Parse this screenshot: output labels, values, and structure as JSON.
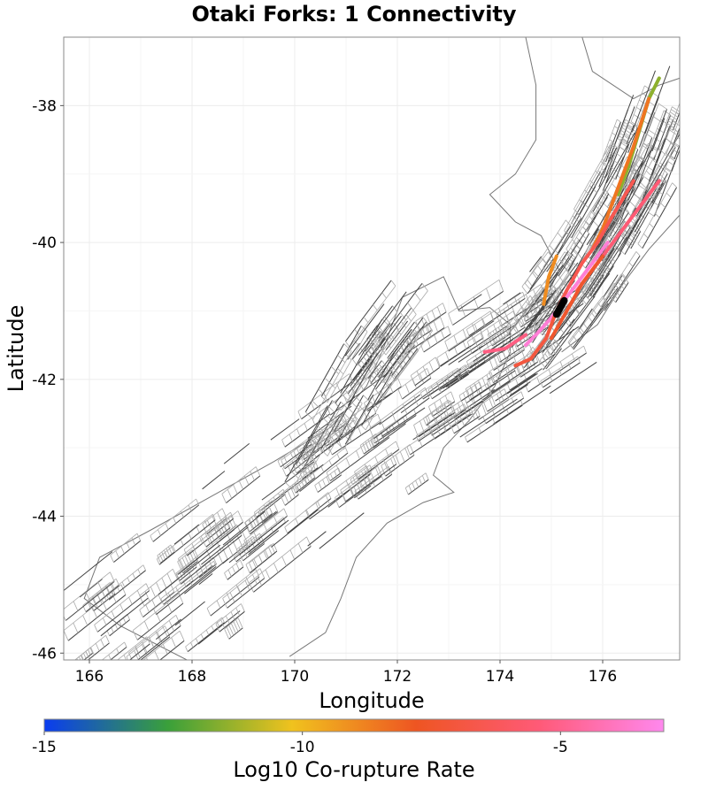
{
  "chart_data": {
    "type": "map",
    "title": "Otaki Forks: 1 Connectivity",
    "xlabel": "Longitude",
    "ylabel": "Latitude",
    "xlim": [
      165.5,
      177.5
    ],
    "ylim": [
      -46.1,
      -37.0
    ],
    "xticks": [
      166,
      168,
      170,
      172,
      174,
      176
    ],
    "yticks": [
      -38,
      -40,
      -42,
      -44,
      -46
    ],
    "grid": true,
    "colorbar": {
      "label": "Log10 Co-rupture Rate",
      "range": [
        -15,
        -3
      ],
      "ticks": [
        -15,
        -10,
        -5
      ],
      "colors": [
        "#0a3cf0",
        "#3aa03a",
        "#f0c21e",
        "#ee5522",
        "#ff5a78",
        "#ff88ee"
      ]
    },
    "source_fault_color": "#000000",
    "ruptures": [
      {
        "name": "north-green",
        "log10_rate": -11.5,
        "path": [
          [
            177.1,
            -37.6
          ],
          [
            176.9,
            -37.9
          ],
          [
            176.7,
            -38.4
          ],
          [
            176.5,
            -38.9
          ],
          [
            176.3,
            -39.3
          ]
        ]
      },
      {
        "name": "north-orange",
        "log10_rate": -8.5,
        "path": [
          [
            176.9,
            -37.9
          ],
          [
            176.6,
            -38.6
          ],
          [
            176.3,
            -39.2
          ],
          [
            176.0,
            -39.8
          ],
          [
            175.8,
            -40.1
          ]
        ]
      },
      {
        "name": "axial-orange-red",
        "log10_rate": -6.5,
        "path": [
          [
            176.6,
            -39.1
          ],
          [
            176.2,
            -39.6
          ],
          [
            175.9,
            -40.0
          ],
          [
            175.6,
            -40.3
          ],
          [
            175.3,
            -40.7
          ],
          [
            175.1,
            -41.0
          ]
        ]
      },
      {
        "name": "east-red",
        "log10_rate": -5.5,
        "path": [
          [
            177.1,
            -39.1
          ],
          [
            176.7,
            -39.5
          ],
          [
            176.3,
            -39.9
          ],
          [
            175.9,
            -40.3
          ],
          [
            175.5,
            -40.7
          ]
        ]
      },
      {
        "name": "west-yellow",
        "log10_rate": -9.0,
        "path": [
          [
            175.1,
            -40.2
          ],
          [
            174.95,
            -40.5
          ],
          [
            174.85,
            -40.9
          ]
        ]
      },
      {
        "name": "pink-main",
        "log10_rate": -3.5,
        "path": [
          [
            176.1,
            -40.0
          ],
          [
            175.7,
            -40.4
          ],
          [
            175.3,
            -40.8
          ],
          [
            175.0,
            -41.1
          ],
          [
            174.7,
            -41.35
          ],
          [
            174.5,
            -41.5
          ]
        ]
      },
      {
        "name": "cook-strait-red",
        "log10_rate": -5.2,
        "path": [
          [
            174.5,
            -41.35
          ],
          [
            174.1,
            -41.55
          ],
          [
            173.7,
            -41.6
          ]
        ]
      },
      {
        "name": "south-orange",
        "log10_rate": -7.0,
        "path": [
          [
            175.1,
            -41.0
          ],
          [
            174.9,
            -41.4
          ],
          [
            174.6,
            -41.7
          ],
          [
            174.3,
            -41.8
          ]
        ]
      },
      {
        "name": "wairarapa-orange",
        "log10_rate": -7.5,
        "path": [
          [
            176.0,
            -40.2
          ],
          [
            175.6,
            -40.6
          ],
          [
            175.3,
            -41.0
          ],
          [
            175.0,
            -41.4
          ]
        ]
      }
    ]
  }
}
